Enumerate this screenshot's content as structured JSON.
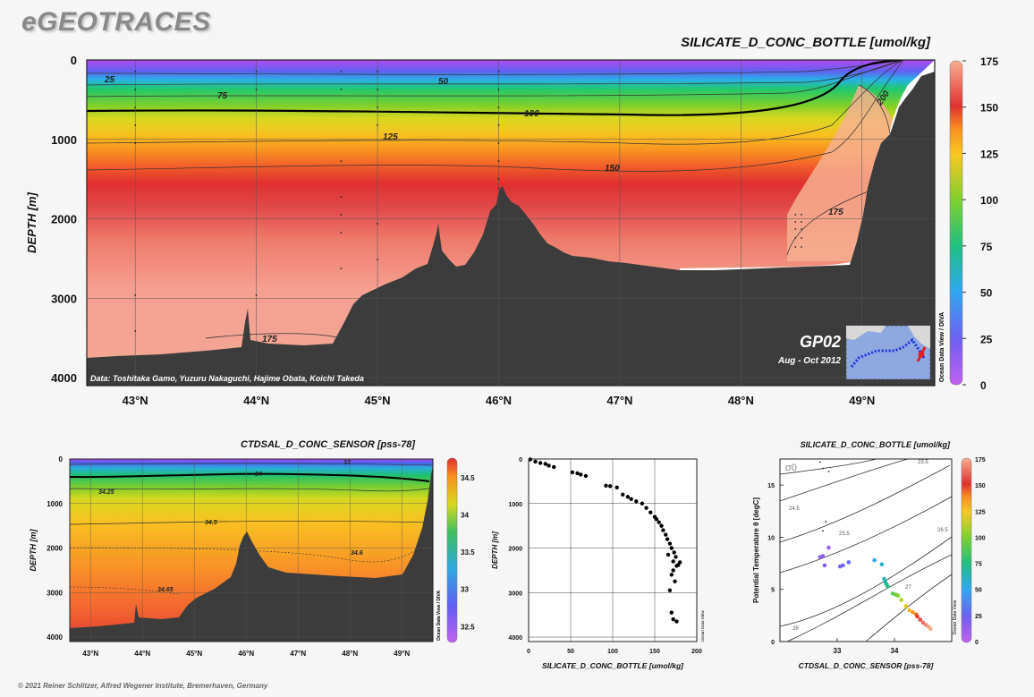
{
  "brand": "eGEOTRACES",
  "footer": "© 2021 Reiner Schlitzer, Alfred Wegener Institute, Bremerhaven, Germany",
  "chart_data": [
    {
      "type": "heatmap",
      "title": "SILICATE_D_CONC_BOTTLE [umol/kg]",
      "ylabel": "DEPTH [m]",
      "xlim": [
        42.6,
        49.6
      ],
      "ylim": [
        4100,
        0
      ],
      "xticks": [
        "43°N",
        "44°N",
        "45°N",
        "46°N",
        "47°N",
        "48°N",
        "49°N"
      ],
      "xtick_values": [
        43,
        44,
        45,
        46,
        47,
        48,
        49
      ],
      "yticks": [
        0,
        1000,
        2000,
        3000,
        4000
      ],
      "colorbar": {
        "min": 0,
        "max": 175,
        "ticks": [
          0,
          25,
          50,
          75,
          100,
          125,
          150,
          175
        ],
        "label": "Ocean Data View / DIVA"
      },
      "contour_labels": [
        "25",
        "50",
        "75",
        "100",
        "125",
        "150",
        "175",
        "200",
        "175"
      ],
      "section": "GP02",
      "period": "Aug - Oct 2012",
      "credit": "Data: Toshitaka Gamo, Yuzuru Nakaguchi, Hajime Obata, Koichi Takeda"
    },
    {
      "type": "heatmap",
      "title": "CTDSAL_D_CONC_SENSOR [pss-78]",
      "ylabel": "DEPTH [m]",
      "xlim": [
        42.6,
        49.6
      ],
      "ylim": [
        4100,
        0
      ],
      "xticks": [
        "43°N",
        "44°N",
        "45°N",
        "46°N",
        "47°N",
        "48°N",
        "49°N"
      ],
      "xtick_values": [
        43,
        44,
        45,
        46,
        47,
        48,
        49
      ],
      "yticks": [
        0,
        1000,
        2000,
        3000,
        4000
      ],
      "colorbar": {
        "min": 32.3,
        "max": 34.75,
        "ticks": [
          "32.5",
          "33",
          "33.5",
          "34",
          "34.5"
        ],
        "tick_values": [
          32.5,
          33,
          33.5,
          34,
          34.5
        ],
        "label": "Ocean Data View / DIVA"
      },
      "contour_labels": [
        "33",
        "34",
        "34.25",
        "34.5",
        "34.6",
        "34.65"
      ]
    },
    {
      "type": "scatter",
      "xlabel": "SILICATE_D_CONC_BOTTLE [umol/kg]",
      "ylabel": "DEPTH [m]",
      "xlim": [
        0,
        200
      ],
      "ylim": [
        4100,
        0
      ],
      "xticks": [
        0,
        50,
        100,
        150,
        200
      ],
      "yticks": [
        0,
        1000,
        2000,
        3000,
        4000
      ],
      "side_label": "Ocean Data View",
      "points": [
        [
          2,
          10
        ],
        [
          8,
          60
        ],
        [
          14,
          90
        ],
        [
          20,
          110
        ],
        [
          24,
          150
        ],
        [
          30,
          180
        ],
        [
          52,
          300
        ],
        [
          58,
          320
        ],
        [
          62,
          350
        ],
        [
          68,
          380
        ],
        [
          92,
          600
        ],
        [
          97,
          610
        ],
        [
          105,
          640
        ],
        [
          112,
          800
        ],
        [
          118,
          850
        ],
        [
          122,
          900
        ],
        [
          128,
          950
        ],
        [
          135,
          1000
        ],
        [
          140,
          1100
        ],
        [
          145,
          1200
        ],
        [
          150,
          1300
        ],
        [
          152,
          1350
        ],
        [
          155,
          1420
        ],
        [
          158,
          1500
        ],
        [
          160,
          1600
        ],
        [
          163,
          1700
        ],
        [
          165,
          1800
        ],
        [
          168,
          1900
        ],
        [
          170,
          2000
        ],
        [
          173,
          2100
        ],
        [
          175,
          2200
        ],
        [
          172,
          2300
        ],
        [
          176,
          2400
        ],
        [
          178,
          2380
        ],
        [
          172,
          2500
        ],
        [
          170,
          2600
        ],
        [
          174,
          2750
        ],
        [
          168,
          2950
        ],
        [
          170,
          3450
        ],
        [
          172,
          3600
        ],
        [
          176,
          3650
        ],
        [
          180,
          2320
        ],
        [
          166,
          2150
        ]
      ]
    },
    {
      "type": "scatter",
      "title": "SILICATE_D_CONC_BOTTLE [umol/kg]",
      "xlabel": "CTDSAL_D_CONC_SENSOR [pss-78]",
      "ylabel": "Potential Temperature θ [degC]",
      "xlim": [
        32.0,
        35.0
      ],
      "ylim": [
        0,
        17.5
      ],
      "xticks": [
        33,
        34
      ],
      "yticks": [
        0,
        5,
        10,
        15
      ],
      "isopycnal_labels": [
        "σ0",
        "23.5",
        "24.5",
        "25.5",
        "26.5",
        "26",
        "27"
      ],
      "colorbar": {
        "min": 0,
        "max": 175,
        "ticks": [
          0,
          25,
          50,
          75,
          100,
          125,
          150,
          175
        ],
        "label": "Ocean Data View"
      },
      "points": [
        [
          32.7,
          17.2,
          2
        ],
        [
          32.75,
          16.6,
          3
        ],
        [
          32.85,
          16.3,
          2
        ],
        [
          32.8,
          11.5,
          4
        ],
        [
          32.75,
          10.6,
          5
        ],
        [
          32.85,
          9.0,
          10
        ],
        [
          32.7,
          8.1,
          14
        ],
        [
          32.75,
          8.2,
          15
        ],
        [
          32.78,
          7.3,
          18
        ],
        [
          33.05,
          7.2,
          22
        ],
        [
          33.1,
          7.3,
          26
        ],
        [
          33.2,
          7.6,
          30
        ],
        [
          33.65,
          7.8,
          52
        ],
        [
          33.78,
          7.4,
          58
        ],
        [
          33.82,
          6.0,
          62
        ],
        [
          33.84,
          5.7,
          66
        ],
        [
          33.86,
          5.5,
          70
        ],
        [
          33.88,
          5.3,
          74
        ],
        [
          33.97,
          4.6,
          90
        ],
        [
          34.02,
          4.5,
          95
        ],
        [
          34.06,
          4.4,
          100
        ],
        [
          34.12,
          4.0,
          110
        ],
        [
          34.2,
          3.4,
          120
        ],
        [
          34.26,
          3.0,
          128
        ],
        [
          34.32,
          2.8,
          135
        ],
        [
          34.38,
          2.6,
          142
        ],
        [
          34.4,
          2.4,
          148
        ],
        [
          34.45,
          2.1,
          155
        ],
        [
          34.5,
          1.8,
          162
        ],
        [
          34.55,
          1.6,
          168
        ],
        [
          34.6,
          1.4,
          172
        ],
        [
          34.63,
          1.2,
          175
        ]
      ]
    }
  ]
}
